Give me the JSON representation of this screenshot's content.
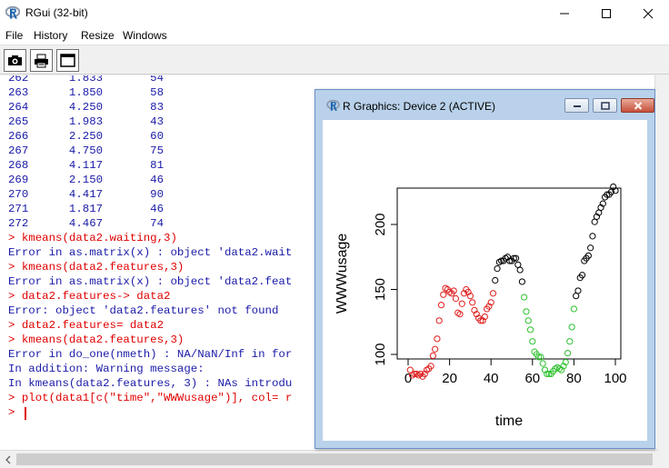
{
  "window": {
    "title": "RGui (32-bit)",
    "minimize_glyph": "—",
    "maximize_glyph": "☐",
    "close_glyph": "✕"
  },
  "menu": [
    "File",
    "History",
    "Resize",
    "Windows"
  ],
  "toolbar": {
    "icons": [
      "camera-icon",
      "print-icon",
      "window-icon"
    ]
  },
  "console": {
    "lines": [
      {
        "type": "output",
        "text": "262      1.833       54"
      },
      {
        "type": "output",
        "text": "263      1.850       58"
      },
      {
        "type": "output",
        "text": "264      4.250       83"
      },
      {
        "type": "output",
        "text": "265      1.983       43"
      },
      {
        "type": "output",
        "text": "266      2.250       60"
      },
      {
        "type": "output",
        "text": "267      4.750       75"
      },
      {
        "type": "output",
        "text": "268      4.117       81"
      },
      {
        "type": "output",
        "text": "269      2.150       46"
      },
      {
        "type": "output",
        "text": "270      4.417       90"
      },
      {
        "type": "output",
        "text": "271      1.817       46"
      },
      {
        "type": "output",
        "text": "272      4.467       74"
      },
      {
        "type": "input",
        "text": "> kmeans(data2.waiting,3)"
      },
      {
        "type": "output",
        "text": "Error in as.matrix(x) : object 'data2.wait"
      },
      {
        "type": "input",
        "text": "> kmeans(data2.features,3)"
      },
      {
        "type": "output",
        "text": "Error in as.matrix(x) : object 'data2.feat"
      },
      {
        "type": "input",
        "text": "> data2.features-> data2"
      },
      {
        "type": "output",
        "text": "Error: object 'data2.features' not found"
      },
      {
        "type": "input",
        "text": "> data2.features= data2"
      },
      {
        "type": "input",
        "text": "> kmeans(data2.features,3)"
      },
      {
        "type": "output",
        "text": "Error in do_one(nmeth) : NA/NaN/Inf in for"
      },
      {
        "type": "output",
        "text": "In addition: Warning message:"
      },
      {
        "type": "output",
        "text": "In kmeans(data2.features, 3) : NAs introdu"
      },
      {
        "type": "input",
        "text": "> plot(data1[c(\"time\",\"WWWusage\")], col= r"
      },
      {
        "type": "input",
        "text": "> "
      }
    ]
  },
  "graphics": {
    "title": "R Graphics: Device 2 (ACTIVE)"
  },
  "colors": {
    "output_text": "#1a1aa8",
    "input_text": "#e00000",
    "cluster_red": "#df1f1f",
    "cluster_green": "#2ec12e",
    "cluster_black": "#000000"
  },
  "chart_data": {
    "type": "scatter",
    "xlabel": "time",
    "ylabel": "WWWusage",
    "xlim": [
      0,
      100
    ],
    "ylim": [
      83,
      228
    ],
    "x_ticks": [
      0,
      20,
      40,
      60,
      80,
      100
    ],
    "y_ticks": [
      100,
      150,
      200
    ],
    "x": [
      1,
      2,
      3,
      4,
      5,
      6,
      7,
      8,
      9,
      10,
      11,
      12,
      13,
      14,
      15,
      16,
      17,
      18,
      19,
      20,
      21,
      22,
      23,
      24,
      25,
      26,
      27,
      28,
      29,
      30,
      31,
      32,
      33,
      34,
      35,
      36,
      37,
      38,
      39,
      40,
      41,
      42,
      43,
      44,
      45,
      46,
      47,
      48,
      49,
      50,
      51,
      52,
      53,
      54,
      55,
      56,
      57,
      58,
      59,
      60,
      61,
      62,
      63,
      64,
      65,
      66,
      67,
      68,
      69,
      70,
      71,
      72,
      73,
      74,
      75,
      76,
      77,
      78,
      79,
      80,
      81,
      82,
      83,
      84,
      85,
      86,
      87,
      88,
      89,
      90,
      91,
      92,
      93,
      94,
      95,
      96,
      97,
      98,
      99,
      100
    ],
    "y": [
      88,
      84,
      85,
      85,
      84,
      85,
      83,
      85,
      88,
      89,
      91,
      99,
      104,
      112,
      126,
      138,
      146,
      151,
      150,
      148,
      147,
      149,
      143,
      132,
      131,
      139,
      147,
      150,
      148,
      145,
      140,
      134,
      131,
      128,
      126,
      126,
      129,
      135,
      137,
      140,
      147,
      157,
      166,
      171,
      172,
      172,
      174,
      175,
      172,
      172,
      174,
      174,
      169,
      165,
      156,
      144,
      133,
      126,
      119,
      110,
      102,
      100,
      98,
      98,
      93,
      88,
      85,
      85,
      85,
      87,
      89,
      90,
      89,
      88,
      91,
      94,
      101,
      110,
      121,
      135,
      145,
      149,
      159,
      161,
      172,
      174,
      176,
      182,
      191,
      202,
      206,
      209,
      213,
      216,
      221,
      223,
      223,
      225,
      229,
      226
    ],
    "clusters": [
      "red",
      "red",
      "red",
      "red",
      "red",
      "red",
      "red",
      "red",
      "red",
      "red",
      "red",
      "red",
      "red",
      "red",
      "red",
      "red",
      "red",
      "red",
      "red",
      "red",
      "red",
      "red",
      "red",
      "red",
      "red",
      "red",
      "red",
      "red",
      "red",
      "red",
      "red",
      "red",
      "red",
      "red",
      "red",
      "red",
      "red",
      "red",
      "red",
      "red",
      "red",
      "black",
      "black",
      "black",
      "black",
      "black",
      "black",
      "black",
      "black",
      "black",
      "black",
      "black",
      "black",
      "black",
      "black",
      "green",
      "green",
      "green",
      "green",
      "green",
      "green",
      "green",
      "green",
      "green",
      "green",
      "green",
      "green",
      "green",
      "green",
      "green",
      "green",
      "green",
      "green",
      "green",
      "green",
      "green",
      "green",
      "green",
      "green",
      "green",
      "black",
      "black",
      "black",
      "black",
      "black",
      "black",
      "black",
      "black",
      "black",
      "black",
      "black",
      "black",
      "black",
      "black",
      "black",
      "black",
      "black",
      "black",
      "black",
      "black"
    ]
  }
}
